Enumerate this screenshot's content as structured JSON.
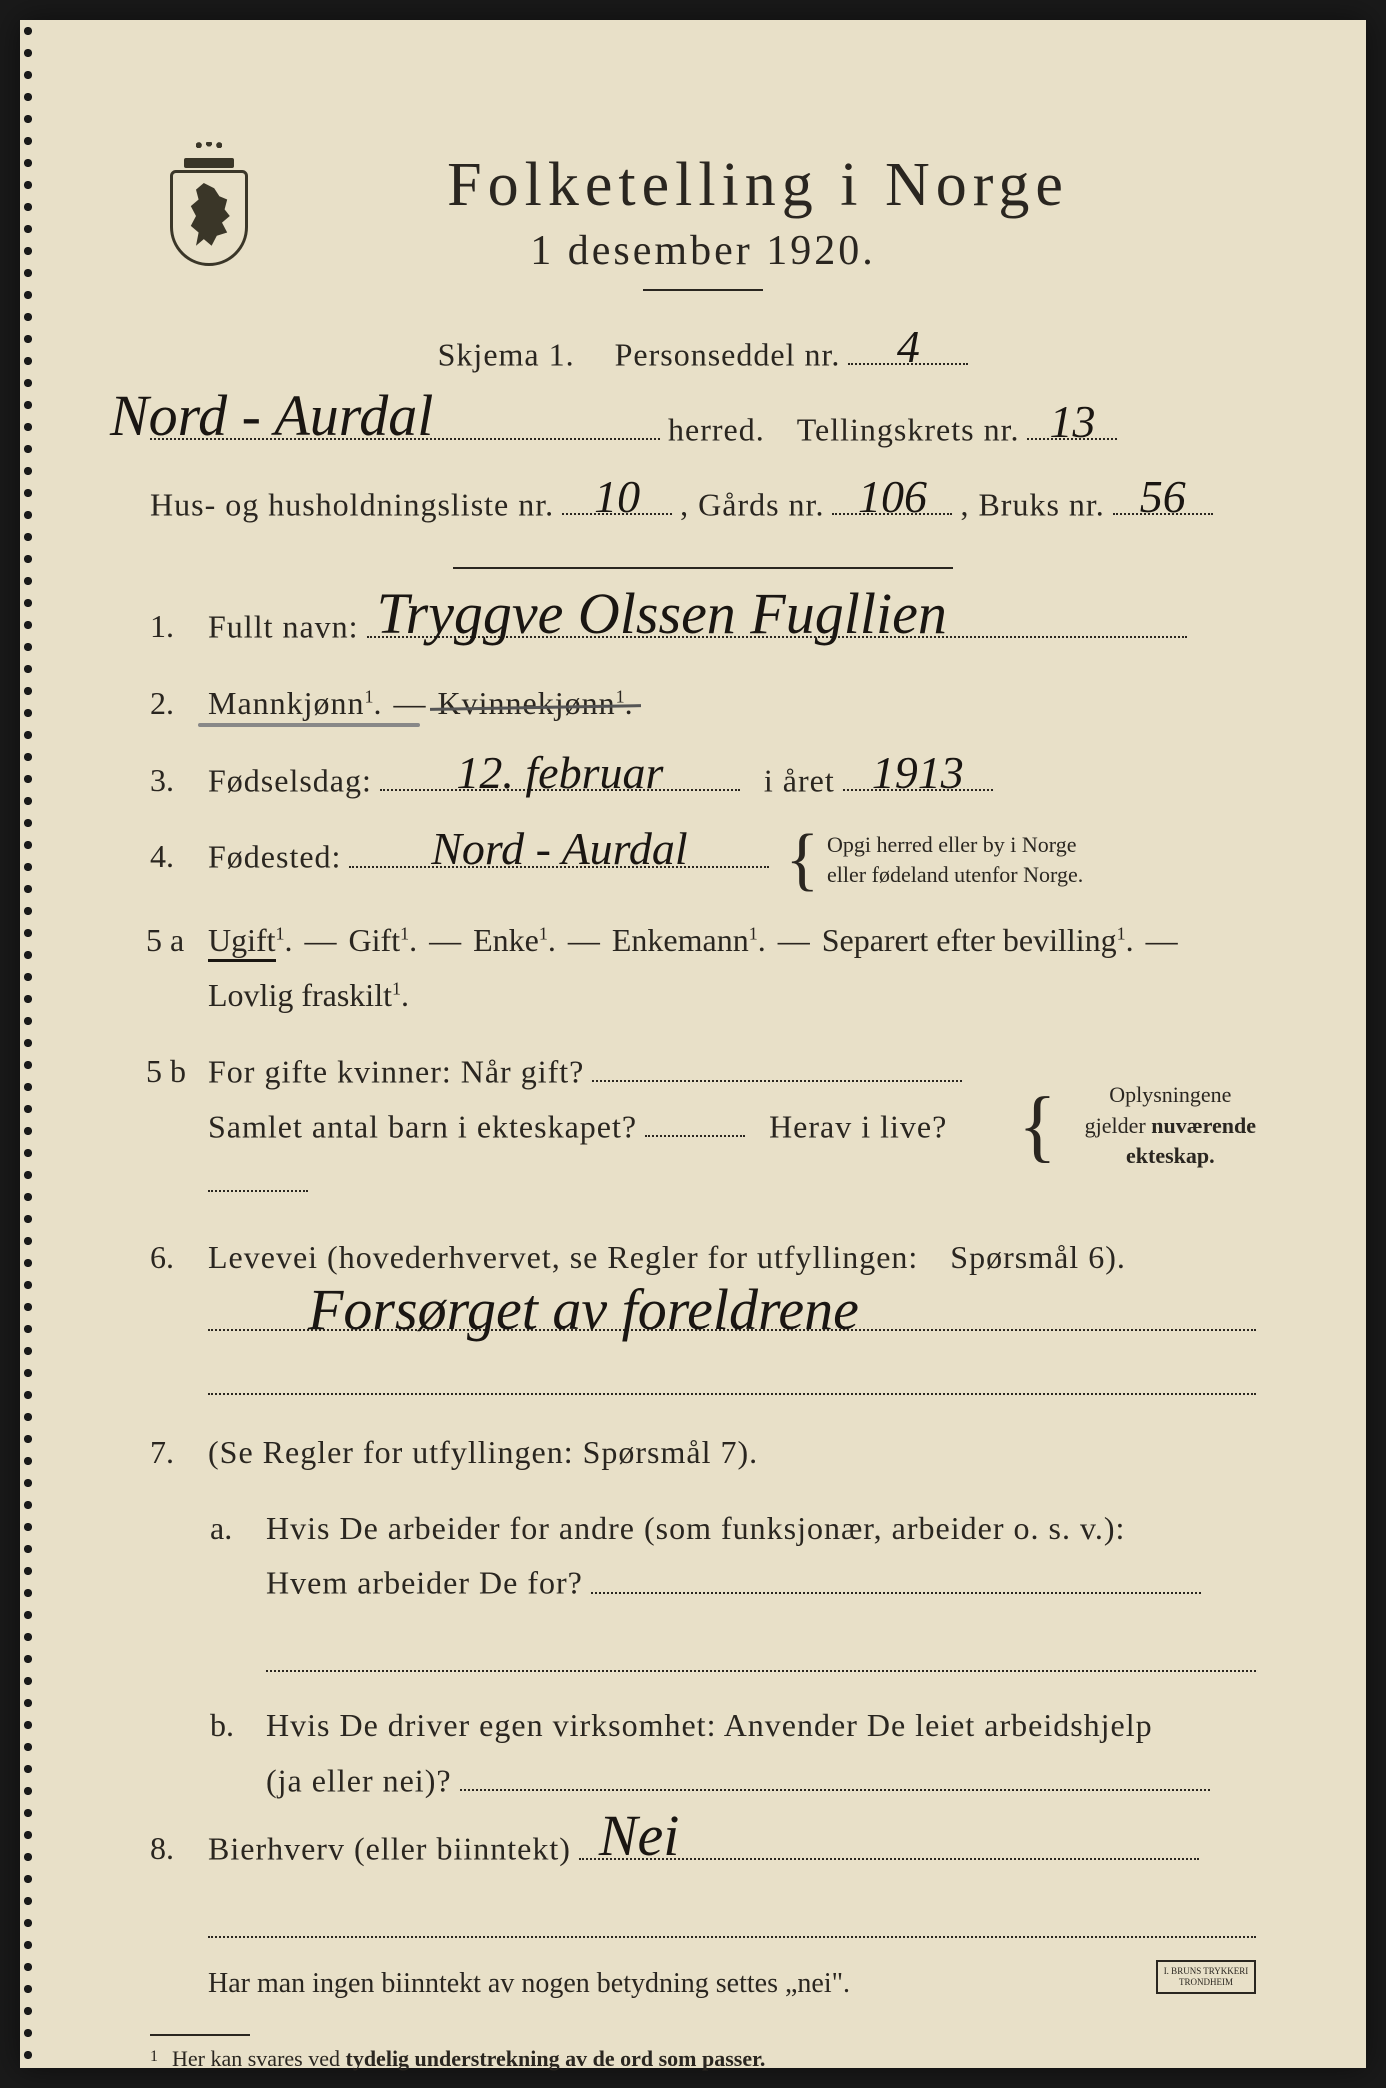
{
  "colors": {
    "paper": "#e8e0c8",
    "ink": "#2a2620",
    "handwriting": "#1a1612",
    "pencil": "#888888",
    "background": "#1a1a1a"
  },
  "header": {
    "title": "Folketelling i Norge",
    "subtitle": "1 desember 1920."
  },
  "skjema_row": {
    "label_skjema": "Skjema 1.",
    "label_personseddel": "Personseddel nr.",
    "personseddel_nr": "4"
  },
  "herred_row": {
    "herred_name": "Nord - Aurdal",
    "label_herred": "herred.",
    "label_tellingskrets": "Tellingskrets nr.",
    "tellingskrets_nr": "13"
  },
  "hus_row": {
    "label_hus": "Hus- og husholdningsliste nr.",
    "hus_nr": "10",
    "label_gards": ", Gårds nr.",
    "gards_nr": "106",
    "label_bruks": ", Bruks nr.",
    "bruks_nr": "56"
  },
  "q1": {
    "num": "1.",
    "label": "Fullt navn:",
    "value": "Tryggve Olssen Fugllien"
  },
  "q2": {
    "num": "2.",
    "opt_mann": "Mannkjønn",
    "dash": " — ",
    "opt_kvinne": "Kvinnekjønn"
  },
  "q3": {
    "num": "3.",
    "label": "Fødselsdag:",
    "day_month": "12. februar",
    "label_year": "i året",
    "year": "1913"
  },
  "q4": {
    "num": "4.",
    "label": "Fødested:",
    "value": "Nord - Aurdal",
    "hint_line1": "Opgi herred eller by i Norge",
    "hint_line2": "eller fødeland utenfor Norge."
  },
  "q5a": {
    "num": "5 a",
    "opt_ugift": "Ugift",
    "opt_gift": "Gift",
    "opt_enke": "Enke",
    "opt_enkemann": "Enkemann",
    "opt_separert": "Separert efter bevilling",
    "opt_fraskilt": "Lovlig fraskilt"
  },
  "q5b": {
    "num": "5 b",
    "label_gifte": "For gifte kvinner: Når gift?",
    "label_barn": "Samlet antal barn i ekteskapet?",
    "label_herav": "Herav i live?",
    "hint_line1": "Oplysningene",
    "hint_line2": "gjelder nuværende",
    "hint_line3": "ekteskap."
  },
  "q6": {
    "num": "6.",
    "label": "Levevei (hovederhvervet, se Regler for utfyllingen:",
    "label2": "Spørsmål 6).",
    "value": "Forsørget av foreldrene"
  },
  "q7": {
    "num": "7.",
    "label": "(Se Regler for utfyllingen:   Spørsmål 7).",
    "a_num": "a.",
    "a_text1": "Hvis De arbeider for andre (som funksjonær, arbeider o. s. v.):",
    "a_text2": "Hvem arbeider De for?",
    "b_num": "b.",
    "b_text1": "Hvis De driver egen virksomhet:   Anvender De leiet arbeidshjelp",
    "b_text2": "(ja eller nei)?"
  },
  "q8": {
    "num": "8.",
    "label": "Bierhverv (eller biinntekt)",
    "value": "Nei",
    "hint": "Har man ingen biinntekt av nogen betydning settes „nei\"."
  },
  "footnote": {
    "num": "1",
    "text_pre": "Her kan svares ved ",
    "text_bold": "tydelig understrekning av de ord som passer."
  },
  "stamp": {
    "line1": "I. BRUNS TRYKKERI",
    "line2": "TRONDHEIM"
  }
}
